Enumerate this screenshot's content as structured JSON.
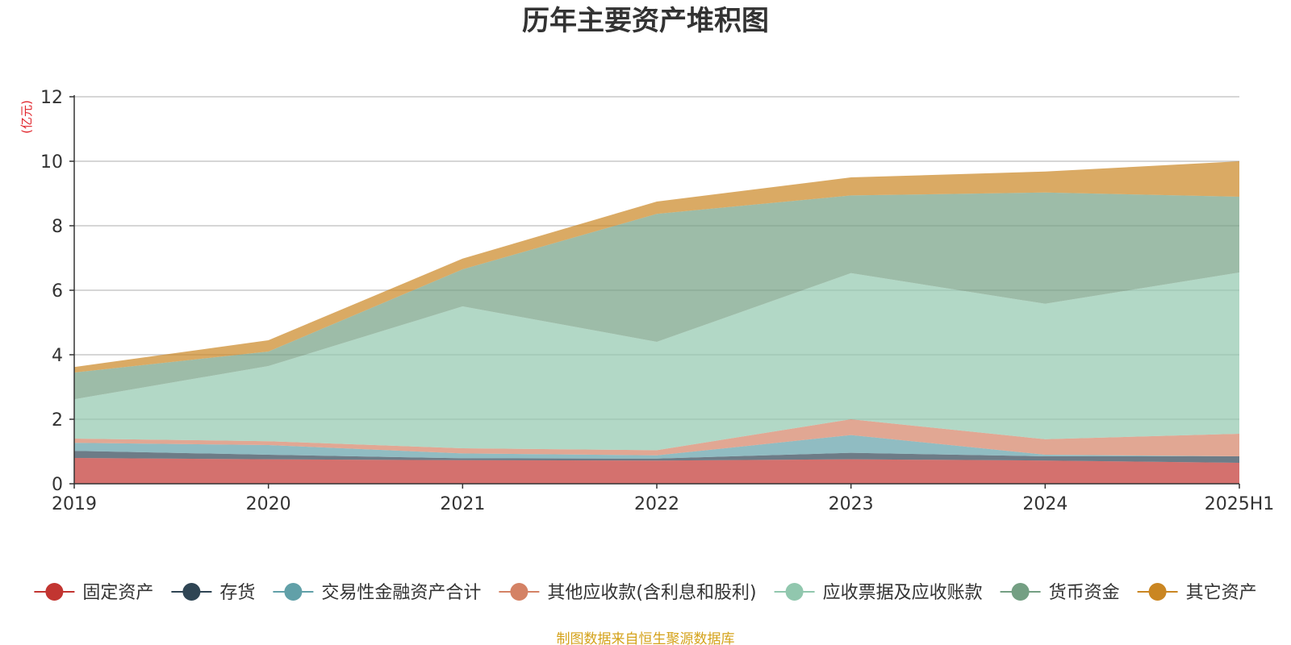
{
  "chart_data": {
    "type": "area",
    "stacked": true,
    "title": "历年主要资产堆积图",
    "unit_label": "(亿元)",
    "categories": [
      "2019",
      "2020",
      "2021",
      "2022",
      "2023",
      "2024",
      "2025H1"
    ],
    "ylim": [
      0,
      12
    ],
    "yticks": [
      "0",
      "2",
      "4",
      "6",
      "8",
      "10",
      "12"
    ],
    "grid": true,
    "legend_position": "bottom",
    "series": [
      {
        "name": "固定资产",
        "color": "#c23531",
        "values": [
          0.8,
          0.76,
          0.73,
          0.72,
          0.76,
          0.72,
          0.65
        ]
      },
      {
        "name": "存货",
        "color": "#2f4554",
        "values": [
          0.22,
          0.14,
          0.06,
          0.06,
          0.2,
          0.13,
          0.2
        ]
      },
      {
        "name": "交易性金融资产合计",
        "color": "#61a0a8",
        "values": [
          0.25,
          0.3,
          0.15,
          0.1,
          0.55,
          0.05,
          0.0
        ]
      },
      {
        "name": "其他应收款(含利息和股利)",
        "color": "#d48265",
        "values": [
          0.13,
          0.12,
          0.16,
          0.16,
          0.49,
          0.48,
          0.7
        ]
      },
      {
        "name": "应收票据及应收账款",
        "color": "#91c7ae",
        "values": [
          1.22,
          2.33,
          4.4,
          3.36,
          4.53,
          4.2,
          5.0
        ]
      },
      {
        "name": "货币资金",
        "color": "#749f83",
        "values": [
          0.83,
          0.45,
          1.15,
          3.97,
          2.41,
          3.45,
          2.35
        ]
      },
      {
        "name": "其它资产",
        "color": "#ca8622",
        "values": [
          0.17,
          0.35,
          0.33,
          0.38,
          0.56,
          0.65,
          1.1
        ]
      }
    ]
  },
  "footer": {
    "source_text": "制图数据来自恒生聚源数据库"
  }
}
